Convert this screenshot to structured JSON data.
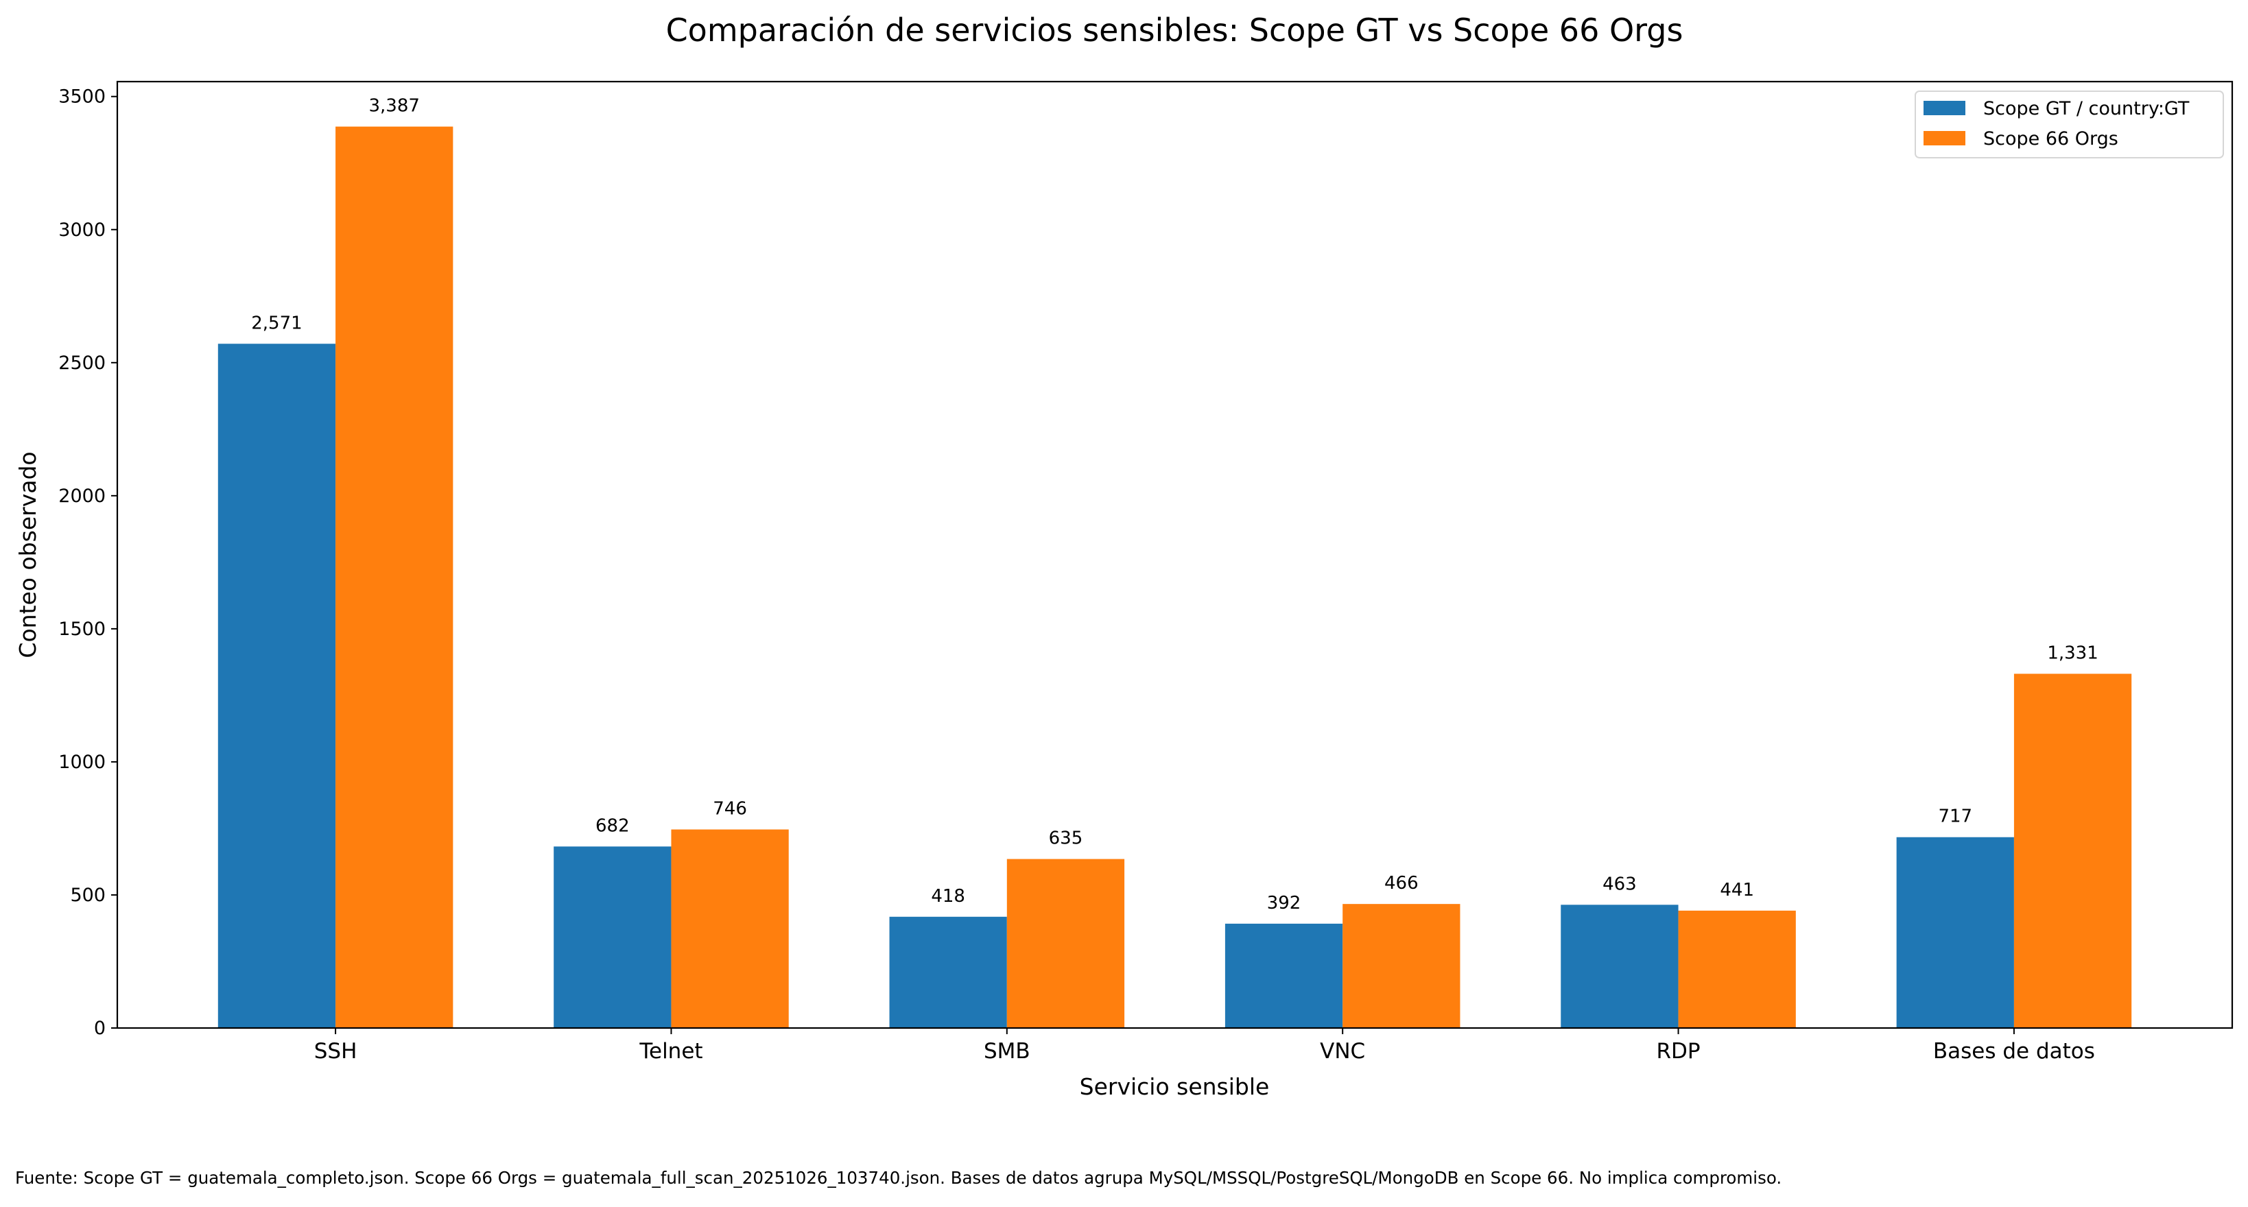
{
  "chart_data": {
    "type": "bar",
    "title": "Comparación de servicios sensibles: Scope GT vs Scope 66 Orgs",
    "xlabel": "Servicio sensible",
    "ylabel": "Conteo observado",
    "categories": [
      "SSH",
      "Telnet",
      "SMB",
      "VNC",
      "RDP",
      "Bases de datos"
    ],
    "series": [
      {
        "name": "Scope GT / country:GT",
        "color": "#1f77b4",
        "values": [
          2571,
          682,
          418,
          392,
          463,
          717
        ],
        "labels": [
          "2,571",
          "682",
          "418",
          "392",
          "463",
          "717"
        ]
      },
      {
        "name": "Scope 66 Orgs",
        "color": "#ff7f0e",
        "values": [
          3387,
          746,
          635,
          466,
          441,
          1331
        ],
        "labels": [
          "3,387",
          "746",
          "635",
          "466",
          "441",
          "1,331"
        ]
      }
    ],
    "ylim": [
      0,
      3556
    ],
    "yticks": [
      0,
      500,
      1000,
      1500,
      2000,
      2500,
      3000,
      3500
    ],
    "grid": false,
    "legend_position": "top-right"
  },
  "footnote": "Fuente: Scope GT = guatemala_completo.json. Scope 66 Orgs = guatemala_full_scan_20251026_103740.json. Bases de datos agrupa MySQL/MSSQL/PostgreSQL/MongoDB en Scope 66. No implica compromiso."
}
